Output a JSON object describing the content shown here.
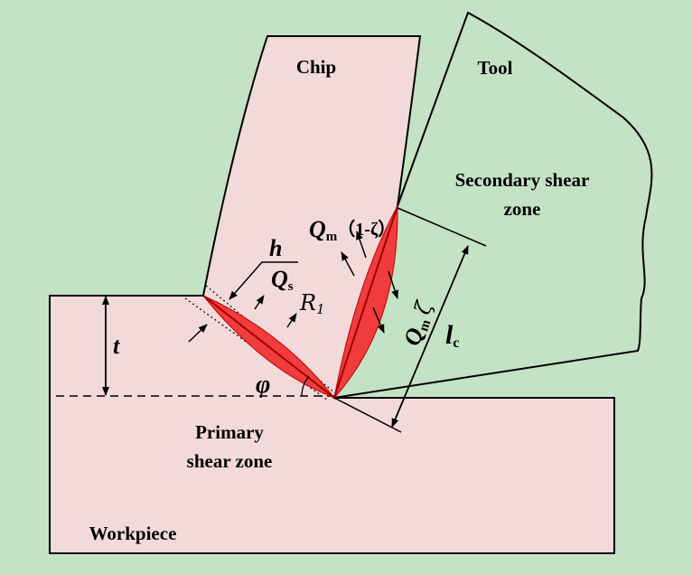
{
  "colors": {
    "background": "#c4e2c4",
    "material": "#f3dada",
    "heat_zone": "#f03c3c",
    "heat_zone_dark": "#b00000",
    "outline": "#000000"
  },
  "labels": {
    "chip": "Chip",
    "tool": "Tool",
    "secondary_shear_zone_line1": "Secondary shear",
    "secondary_shear_zone_line2": "zone",
    "primary_shear_zone_line1": "Primary",
    "primary_shear_zone_line2": "shear zone",
    "workpiece": "Workpiece"
  },
  "symbols": {
    "h": "h",
    "t": "t",
    "phi": "φ",
    "qs_main": "Q",
    "qs_sub": "s",
    "r1_main": "R",
    "r1_sub": "1",
    "qm_main": "Q",
    "qm_sub": "m",
    "one_minus_zeta": "（1-ζ）",
    "qm2_main": "Q",
    "qm2_sub": "m",
    "zeta": "ζ",
    "lc_main": "l",
    "lc_sub": "c"
  }
}
